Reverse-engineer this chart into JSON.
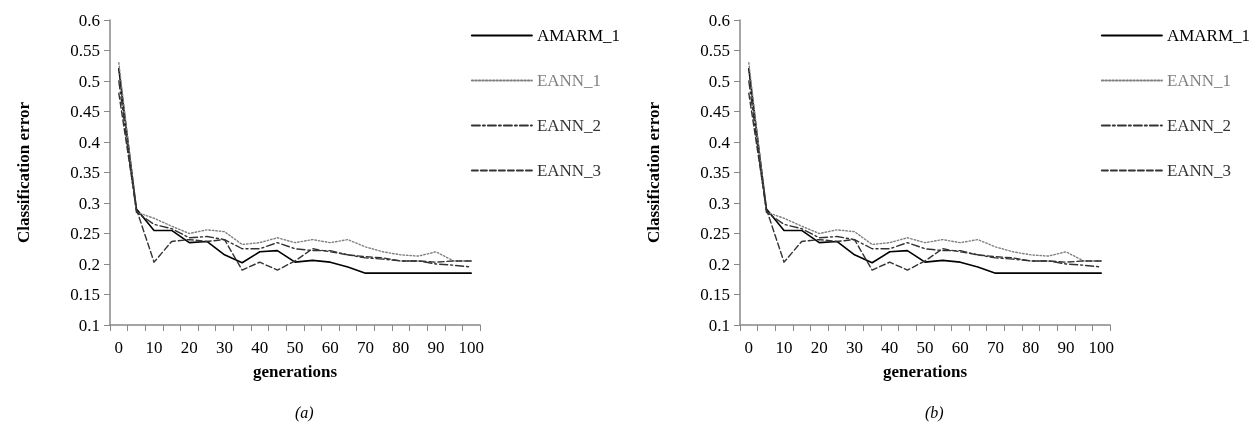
{
  "chart_data": [
    {
      "type": "line",
      "xlabel": "generations",
      "ylabel": "Classification error",
      "annotations": [
        "(a)"
      ],
      "categories": [
        "0",
        null,
        "10",
        null,
        "20",
        null,
        "30",
        null,
        "40",
        null,
        "50",
        null,
        "60",
        null,
        "70",
        null,
        "80",
        null,
        "90",
        null,
        "100"
      ],
      "series": [
        {
          "name": "AMARM_1",
          "color": "#000000",
          "line_style": "solid",
          "values": [
            0.52,
            0.29,
            0.255,
            0.255,
            0.235,
            0.237,
            0.215,
            0.202,
            0.22,
            0.222,
            0.203,
            0.206,
            0.203,
            0.195,
            0.185,
            0.185,
            0.185,
            0.185,
            0.185,
            0.185,
            0.185
          ]
        },
        {
          "name": "EANN_1",
          "color": "#808080",
          "line_style": "dotted",
          "values": [
            0.53,
            0.285,
            0.275,
            0.262,
            0.25,
            0.256,
            0.253,
            0.232,
            0.235,
            0.243,
            0.235,
            0.24,
            0.235,
            0.24,
            0.228,
            0.22,
            0.215,
            0.213,
            0.22,
            0.205,
            0.205
          ]
        },
        {
          "name": "EANN_2",
          "color": "#333333",
          "line_style": "dashdot",
          "values": [
            0.5,
            0.285,
            0.265,
            0.258,
            0.243,
            0.245,
            0.24,
            0.225,
            0.225,
            0.235,
            0.225,
            0.222,
            0.222,
            0.215,
            0.21,
            0.208,
            0.205,
            0.205,
            0.2,
            0.198,
            0.195
          ]
        },
        {
          "name": "EANN_3",
          "color": "#333333",
          "line_style": "dashed",
          "values": [
            0.48,
            0.29,
            0.203,
            0.237,
            0.24,
            0.237,
            0.24,
            0.19,
            0.203,
            0.19,
            0.205,
            0.225,
            0.22,
            0.215,
            0.212,
            0.21,
            0.205,
            0.205,
            0.203,
            0.205,
            0.205
          ]
        }
      ],
      "ylim": [
        0.1,
        0.6
      ],
      "yticks": [
        0.1,
        0.15,
        0.2,
        0.25,
        0.3,
        0.35,
        0.4,
        0.45,
        0.5,
        0.55,
        0.6
      ],
      "grid": false,
      "legend": "top right",
      "marker": "none"
    },
    {
      "type": "line",
      "xlabel": "generations",
      "ylabel": "Classification error",
      "annotations": [
        "(b)"
      ],
      "categories": [
        "0",
        null,
        "10",
        null,
        "20",
        null,
        "30",
        null,
        "40",
        null,
        "50",
        null,
        "60",
        null,
        "70",
        null,
        "80",
        null,
        "90",
        null,
        "100"
      ],
      "series": [
        {
          "name": "AMARM_1",
          "color": "#000000",
          "line_style": "solid",
          "values": [
            0.52,
            0.29,
            0.255,
            0.255,
            0.235,
            0.237,
            0.215,
            0.202,
            0.22,
            0.222,
            0.203,
            0.206,
            0.203,
            0.195,
            0.185,
            0.185,
            0.185,
            0.185,
            0.185,
            0.185,
            0.185
          ]
        },
        {
          "name": "EANN_1",
          "color": "#808080",
          "line_style": "dotted",
          "values": [
            0.53,
            0.285,
            0.275,
            0.262,
            0.25,
            0.256,
            0.253,
            0.232,
            0.235,
            0.243,
            0.235,
            0.24,
            0.235,
            0.24,
            0.228,
            0.22,
            0.215,
            0.213,
            0.22,
            0.205,
            0.205
          ]
        },
        {
          "name": "EANN_2",
          "color": "#333333",
          "line_style": "dashdot",
          "values": [
            0.5,
            0.285,
            0.265,
            0.258,
            0.243,
            0.245,
            0.24,
            0.225,
            0.225,
            0.235,
            0.225,
            0.222,
            0.222,
            0.215,
            0.21,
            0.208,
            0.205,
            0.205,
            0.2,
            0.198,
            0.195
          ]
        },
        {
          "name": "EANN_3",
          "color": "#333333",
          "line_style": "dashed",
          "values": [
            0.48,
            0.29,
            0.203,
            0.237,
            0.24,
            0.237,
            0.24,
            0.19,
            0.203,
            0.19,
            0.205,
            0.225,
            0.22,
            0.215,
            0.212,
            0.21,
            0.205,
            0.205,
            0.203,
            0.205,
            0.205
          ]
        }
      ],
      "ylim": [
        0.1,
        0.6
      ],
      "yticks": [
        0.1,
        0.15,
        0.2,
        0.25,
        0.3,
        0.35,
        0.4,
        0.45,
        0.5,
        0.55,
        0.6
      ],
      "grid": false,
      "legend": "top right",
      "marker": "none"
    }
  ]
}
